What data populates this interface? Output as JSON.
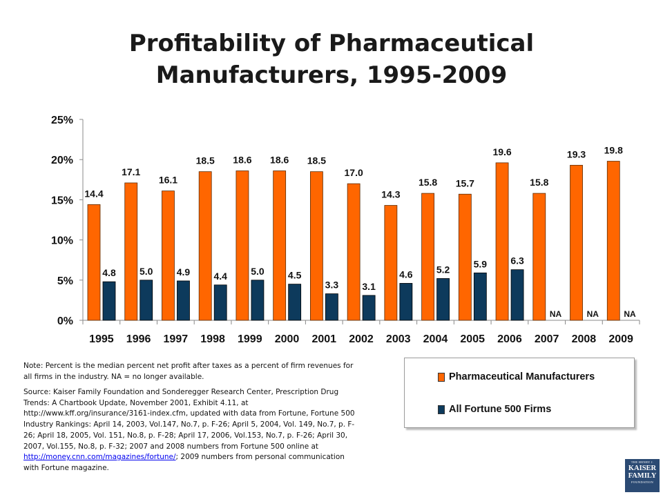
{
  "title_line1": "Profitability of Pharmaceutical",
  "title_line2": "Manufacturers, 1995-2009",
  "note": "Note: Percent is the median percent net profit after taxes as a percent of firm revenues for all firms in the industry.  NA = no longer available.",
  "source_text": "Source: Kaiser Family Foundation and Sonderegger Research Center, Prescription Drug Trends: A Chartbook Update, November 2001, Exhibit 4.11, at http://www.kff.org/insurance/3161-index.cfm,  updated with data from Fortune, Fortune 500 Industry Rankings: April 14, 2003, Vol.147, No.7, p. F-26; April 5, 2004, Vol. 149, No.7, p. F-26; April 18, 2005, Vol. 151, No.8, p. F-28; April 17, 2006, Vol.153, No.7, p. F-26; April 30, 2007, Vol.155, No.8, p. F-32; 2007 and 2008 numbers from Fortune 500 online at",
  "source_link": "http://money.cnn.com/magazines/fortune/",
  "source_tail": ";  2009 numbers from personal communication with Fortune magazine.",
  "logo": {
    "line1": "THE HENRY J.",
    "line2": "KAISER",
    "line3": "FAMILY",
    "line4": "FOUNDATION"
  },
  "colors": {
    "pharma": "#ff6600",
    "fortune": "#0d3a5c"
  },
  "chart_data": {
    "type": "bar",
    "title": "Profitability of Pharmaceutical Manufacturers, 1995-2009",
    "categories": [
      "1995",
      "1996",
      "1997",
      "1998",
      "1999",
      "2000",
      "2001",
      "2002",
      "2003",
      "2004",
      "2005",
      "2006",
      "2007",
      "2008",
      "2009"
    ],
    "series": [
      {
        "name": "Pharmaceutical Manufacturers",
        "values": [
          14.4,
          17.1,
          16.1,
          18.5,
          18.6,
          18.6,
          18.5,
          17.0,
          14.3,
          15.8,
          15.7,
          19.6,
          15.8,
          19.3,
          19.8
        ],
        "labels": [
          "14.4",
          "17.1",
          "16.1",
          "18.5",
          "18.6",
          "18.6",
          "18.5",
          "17.0",
          "14.3",
          "15.8",
          "15.7",
          "19.6",
          "15.8",
          "19.3",
          "19.8"
        ]
      },
      {
        "name": "All Fortune 500 Firms",
        "values": [
          4.8,
          5.0,
          4.9,
          4.4,
          5.0,
          4.5,
          3.3,
          3.1,
          4.6,
          5.2,
          5.9,
          6.3,
          null,
          null,
          null
        ],
        "labels": [
          "4.8",
          "5.0",
          "4.9",
          "4.4",
          "5.0",
          "4.5",
          "3.3",
          "3.1",
          "4.6",
          "5.2",
          "5.9",
          "6.3",
          "NA",
          "NA",
          "NA"
        ]
      }
    ],
    "yticks": [
      "0%",
      "5%",
      "10%",
      "15%",
      "20%",
      "25%"
    ],
    "ylim": [
      0,
      25
    ],
    "grid": false,
    "legend": "bottom-right"
  }
}
